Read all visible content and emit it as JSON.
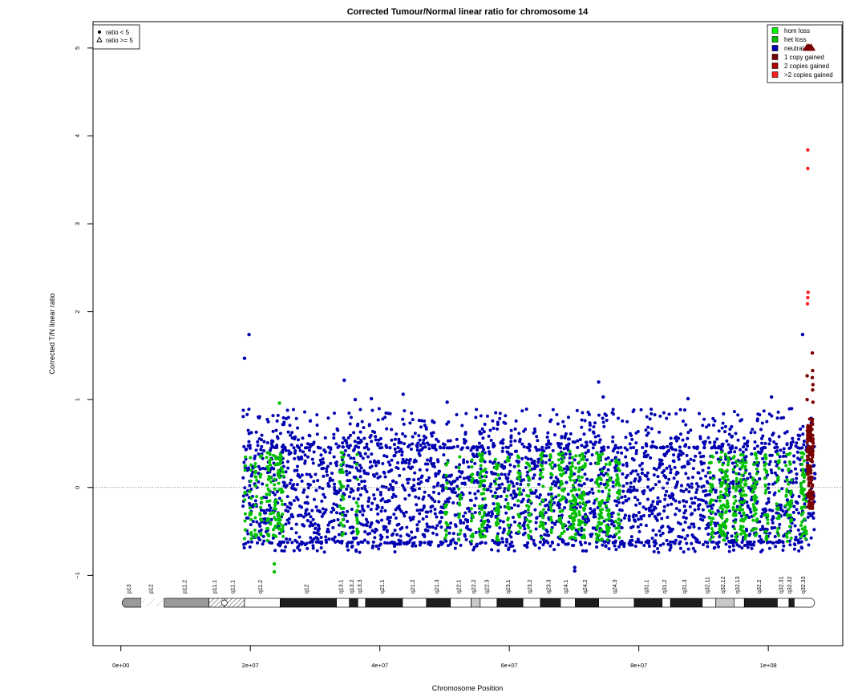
{
  "chart_data": {
    "type": "scatter",
    "title": "Corrected Tumour/Normal linear ratio for chromosome  14",
    "xlabel": "Chromosome Position",
    "ylabel": "Corrected T/N linear ratio",
    "xlim": [
      -4300000,
      111500000
    ],
    "ylim": [
      -1.8,
      5.3
    ],
    "x_ticks": [
      0,
      20000000,
      40000000,
      60000000,
      80000000,
      100000000
    ],
    "x_tick_labels": [
      "0e+00",
      "2e+07",
      "4e+07",
      "6e+07",
      "8e+07",
      "1e+08"
    ],
    "y_ticks": [
      -1,
      0,
      1,
      2,
      3,
      4,
      5
    ],
    "y_tick_labels": [
      "−1",
      "0",
      "1",
      "2",
      "3",
      "4",
      "5"
    ],
    "reference_line": 0,
    "grid": false,
    "legend_shape_position": "top-left",
    "legend_shape_entries": [
      {
        "symbol": "filled-circle",
        "label": "ratio < 5"
      },
      {
        "symbol": "open-triangle",
        "label": "ratio >= 5"
      }
    ],
    "legend_status_position": "top-right",
    "legend_status_entries": [
      {
        "label": "hom loss",
        "color": "#00ff00"
      },
      {
        "label": "het loss",
        "color": "#00c000"
      },
      {
        "label": "neutral",
        "color": "#0000b0"
      },
      {
        "label": "1 copy gained",
        "color": "#7a0000"
      },
      {
        "label": "2 copies gained",
        "color": "#b00000"
      },
      {
        "label": ">2 copies gained",
        "color": "#ff2020"
      }
    ],
    "data_x_range": [
      18800000,
      107200000
    ],
    "data_bulk_y_range": [
      -0.65,
      0.45
    ],
    "green_het_loss_regions_x": [
      [
        19100000,
        19300000
      ],
      [
        19900000,
        20200000
      ],
      [
        20700000,
        21000000
      ],
      [
        21500000,
        21800000
      ],
      [
        22500000,
        23200000
      ],
      [
        23500000,
        24000000
      ],
      [
        24200000,
        25100000
      ],
      [
        33800000,
        34400000
      ],
      [
        36400000,
        36700000
      ],
      [
        50100000,
        50500000
      ],
      [
        52200000,
        52500000
      ],
      [
        54100000,
        54400000
      ],
      [
        55300000,
        56300000
      ],
      [
        57800000,
        58400000
      ],
      [
        59600000,
        60000000
      ],
      [
        61300000,
        61700000
      ],
      [
        62700000,
        63300000
      ],
      [
        64700000,
        65300000
      ],
      [
        66300000,
        66700000
      ],
      [
        67600000,
        68500000
      ],
      [
        69300000,
        70400000
      ],
      [
        70700000,
        71800000
      ],
      [
        73400000,
        74400000
      ],
      [
        74900000,
        75600000
      ],
      [
        76400000,
        77100000
      ],
      [
        90900000,
        91500000
      ],
      [
        92400000,
        93900000
      ],
      [
        94600000,
        95200000
      ],
      [
        95600000,
        96700000
      ],
      [
        97500000,
        98300000
      ],
      [
        99400000,
        100000000
      ],
      [
        101300000,
        101700000
      ],
      [
        102700000,
        103600000
      ],
      [
        105000000,
        105900000
      ]
    ],
    "notable_points": [
      {
        "x": 19100000,
        "y": 1.47,
        "status": "neutral"
      },
      {
        "x": 19800000,
        "y": 1.74,
        "status": "neutral"
      },
      {
        "x": 34500000,
        "y": 1.22,
        "status": "neutral"
      },
      {
        "x": 36200000,
        "y": 1.0,
        "status": "neutral"
      },
      {
        "x": 38700000,
        "y": 1.01,
        "status": "neutral"
      },
      {
        "x": 43600000,
        "y": 1.06,
        "status": "neutral"
      },
      {
        "x": 50400000,
        "y": 0.97,
        "status": "neutral"
      },
      {
        "x": 73800000,
        "y": 1.2,
        "status": "neutral"
      },
      {
        "x": 74500000,
        "y": 1.03,
        "status": "neutral"
      },
      {
        "x": 87600000,
        "y": 1.01,
        "status": "neutral"
      },
      {
        "x": 100500000,
        "y": 1.03,
        "status": "neutral"
      },
      {
        "x": 105300000,
        "y": 1.74,
        "status": "neutral"
      },
      {
        "x": 24500000,
        "y": 0.96,
        "status": "het loss"
      },
      {
        "x": 23700000,
        "y": -0.96,
        "status": "het loss"
      },
      {
        "x": 23700000,
        "y": -0.87,
        "status": "het loss"
      },
      {
        "x": 70100000,
        "y": -0.91,
        "status": "neutral"
      },
      {
        "x": 70100000,
        "y": -0.95,
        "status": "neutral"
      },
      {
        "x": 106100000,
        "y": 3.84,
        "status": ">2 copies gained"
      },
      {
        "x": 106100000,
        "y": 3.63,
        "status": ">2 copies gained"
      },
      {
        "x": 106150000,
        "y": 2.22,
        "status": ">2 copies gained"
      },
      {
        "x": 106100000,
        "y": 2.16,
        "status": ">2 copies gained"
      },
      {
        "x": 106050000,
        "y": 2.09,
        "status": ">2 copies gained"
      },
      {
        "x": 106800000,
        "y": 1.53,
        "status": "1 copy gained"
      },
      {
        "x": 106850000,
        "y": 1.33,
        "status": "1 copy gained"
      },
      {
        "x": 106800000,
        "y": 1.25,
        "status": "1 copy gained"
      },
      {
        "x": 106000000,
        "y": 1.27,
        "status": "1 copy gained"
      },
      {
        "x": 106900000,
        "y": 1.17,
        "status": "1 copy gained"
      },
      {
        "x": 106850000,
        "y": 1.11,
        "status": "1 copy gained"
      },
      {
        "x": 106000000,
        "y": 1.0,
        "status": "1 copy gained"
      },
      {
        "x": 106900000,
        "y": 0.97,
        "status": "1 copy gained"
      }
    ],
    "triangle_points": [
      {
        "x": 106000000,
        "y": 5.0,
        "status": "1 copy gained"
      },
      {
        "x": 106300000,
        "y": 5.0,
        "status": "1 copy gained"
      },
      {
        "x": 106600000,
        "y": 5.0,
        "status": "1 copy gained"
      }
    ],
    "ideogram": {
      "bands": [
        {
          "name": "p13",
          "start": 0,
          "end": 3100000,
          "stain": "gvar"
        },
        {
          "name": "p12",
          "start": 3100000,
          "end": 6700000,
          "stain": "stalk"
        },
        {
          "name": "p11.2",
          "start": 6700000,
          "end": 13600000,
          "stain": "gvar"
        },
        {
          "name": "p11.1",
          "start": 13600000,
          "end": 16000000,
          "stain": "acen"
        },
        {
          "name": "q11.1",
          "start": 16000000,
          "end": 19100000,
          "stain": "acen"
        },
        {
          "name": "q11.2",
          "start": 19100000,
          "end": 24600000,
          "stain": "gneg"
        },
        {
          "name": "q12",
          "start": 24600000,
          "end": 33300000,
          "stain": "gpos100"
        },
        {
          "name": "q13.1",
          "start": 33300000,
          "end": 35300000,
          "stain": "gneg"
        },
        {
          "name": "q13.2",
          "start": 35300000,
          "end": 36600000,
          "stain": "gpos50"
        },
        {
          "name": "q13.3",
          "start": 36600000,
          "end": 37800000,
          "stain": "gneg"
        },
        {
          "name": "q21.1",
          "start": 37800000,
          "end": 43500000,
          "stain": "gpos100"
        },
        {
          "name": "q21.2",
          "start": 43500000,
          "end": 47200000,
          "stain": "gneg"
        },
        {
          "name": "q21.3",
          "start": 47200000,
          "end": 50900000,
          "stain": "gpos100"
        },
        {
          "name": "q22.1",
          "start": 50900000,
          "end": 54100000,
          "stain": "gneg"
        },
        {
          "name": "q22.2",
          "start": 54100000,
          "end": 55500000,
          "stain": "gpos25"
        },
        {
          "name": "q22.3",
          "start": 55500000,
          "end": 58100000,
          "stain": "gneg"
        },
        {
          "name": "q23.1",
          "start": 58100000,
          "end": 62100000,
          "stain": "gpos75"
        },
        {
          "name": "q23.2",
          "start": 62100000,
          "end": 64800000,
          "stain": "gneg"
        },
        {
          "name": "q23.3",
          "start": 64800000,
          "end": 67900000,
          "stain": "gpos50"
        },
        {
          "name": "q24.1",
          "start": 67900000,
          "end": 70200000,
          "stain": "gneg"
        },
        {
          "name": "q24.2",
          "start": 70200000,
          "end": 73800000,
          "stain": "gpos50"
        },
        {
          "name": "q24.3",
          "start": 73800000,
          "end": 79300000,
          "stain": "gneg"
        },
        {
          "name": "q31.1",
          "start": 79300000,
          "end": 83600000,
          "stain": "gpos100"
        },
        {
          "name": "q31.2",
          "start": 83600000,
          "end": 84900000,
          "stain": "gneg"
        },
        {
          "name": "q31.3",
          "start": 84900000,
          "end": 89800000,
          "stain": "gpos100"
        },
        {
          "name": "q32.11",
          "start": 89800000,
          "end": 91900000,
          "stain": "gneg"
        },
        {
          "name": "q32.12",
          "start": 91900000,
          "end": 94700000,
          "stain": "gpos25"
        },
        {
          "name": "q32.13",
          "start": 94700000,
          "end": 96300000,
          "stain": "gneg"
        },
        {
          "name": "q32.2",
          "start": 96300000,
          "end": 101400000,
          "stain": "gpos50"
        },
        {
          "name": "q32.31",
          "start": 101400000,
          "end": 103200000,
          "stain": "gneg"
        },
        {
          "name": "q32.32",
          "start": 103200000,
          "end": 104000000,
          "stain": "gpos50"
        },
        {
          "name": "q32.33",
          "start": 104000000,
          "end": 107349540,
          "stain": "gneg"
        }
      ]
    }
  }
}
